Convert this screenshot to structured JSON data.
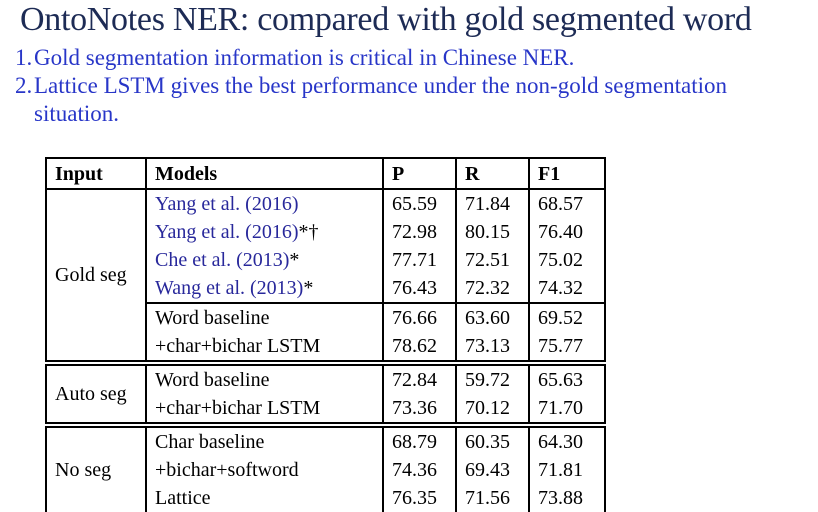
{
  "slide": {
    "title": "OntoNotes NER: compared with gold segmented word",
    "points": [
      {
        "number": "1.",
        "text": "Gold segmentation information is critical in Chinese NER."
      },
      {
        "number": "2.",
        "text": "Lattice LSTM gives the best performance under the non-gold segmentation situation."
      }
    ]
  },
  "colors": {
    "title_navy": "#1d2b55",
    "point_blue": "#2836c8",
    "citation_blue": "#28289b",
    "table_border": "#000000"
  },
  "table": {
    "headers": [
      "Input",
      "Models",
      "P",
      "R",
      "F1"
    ],
    "groups": [
      {
        "input": "Gold seg"
      },
      {
        "input": "Auto seg"
      },
      {
        "input": "No seg"
      }
    ],
    "rows": [
      {
        "model": "Yang et al. (2016)",
        "suffix": "",
        "p": "65.59",
        "r": "71.84",
        "f1": "68.57"
      },
      {
        "model": "Yang et al. (2016)",
        "suffix": "*†",
        "p": "72.98",
        "r": "80.15",
        "f1": "76.40"
      },
      {
        "model": "Che et al. (2013)",
        "suffix": "*",
        "p": "77.71",
        "r": "72.51",
        "f1": "75.02"
      },
      {
        "model": "Wang et al. (2013)",
        "suffix": "*",
        "p": "76.43",
        "r": "72.32",
        "f1": "74.32"
      },
      {
        "model": "Word baseline",
        "p": "76.66",
        "r": "63.60",
        "f1": "69.52"
      },
      {
        "model": "+char+bichar LSTM",
        "p": "78.62",
        "r": "73.13",
        "f1": "75.77"
      },
      {
        "model": "Word baseline",
        "p": "72.84",
        "r": "59.72",
        "f1": "65.63"
      },
      {
        "model": "+char+bichar LSTM",
        "p": "73.36",
        "r": "70.12",
        "f1": "71.70"
      },
      {
        "model": "Char baseline",
        "p": "68.79",
        "r": "60.35",
        "f1": "64.30"
      },
      {
        "model": "+bichar+softword",
        "p": "74.36",
        "r": "69.43",
        "f1": "71.81"
      },
      {
        "model": "Lattice",
        "p": "76.35",
        "r": "71.56",
        "f1": "73.88"
      }
    ]
  }
}
